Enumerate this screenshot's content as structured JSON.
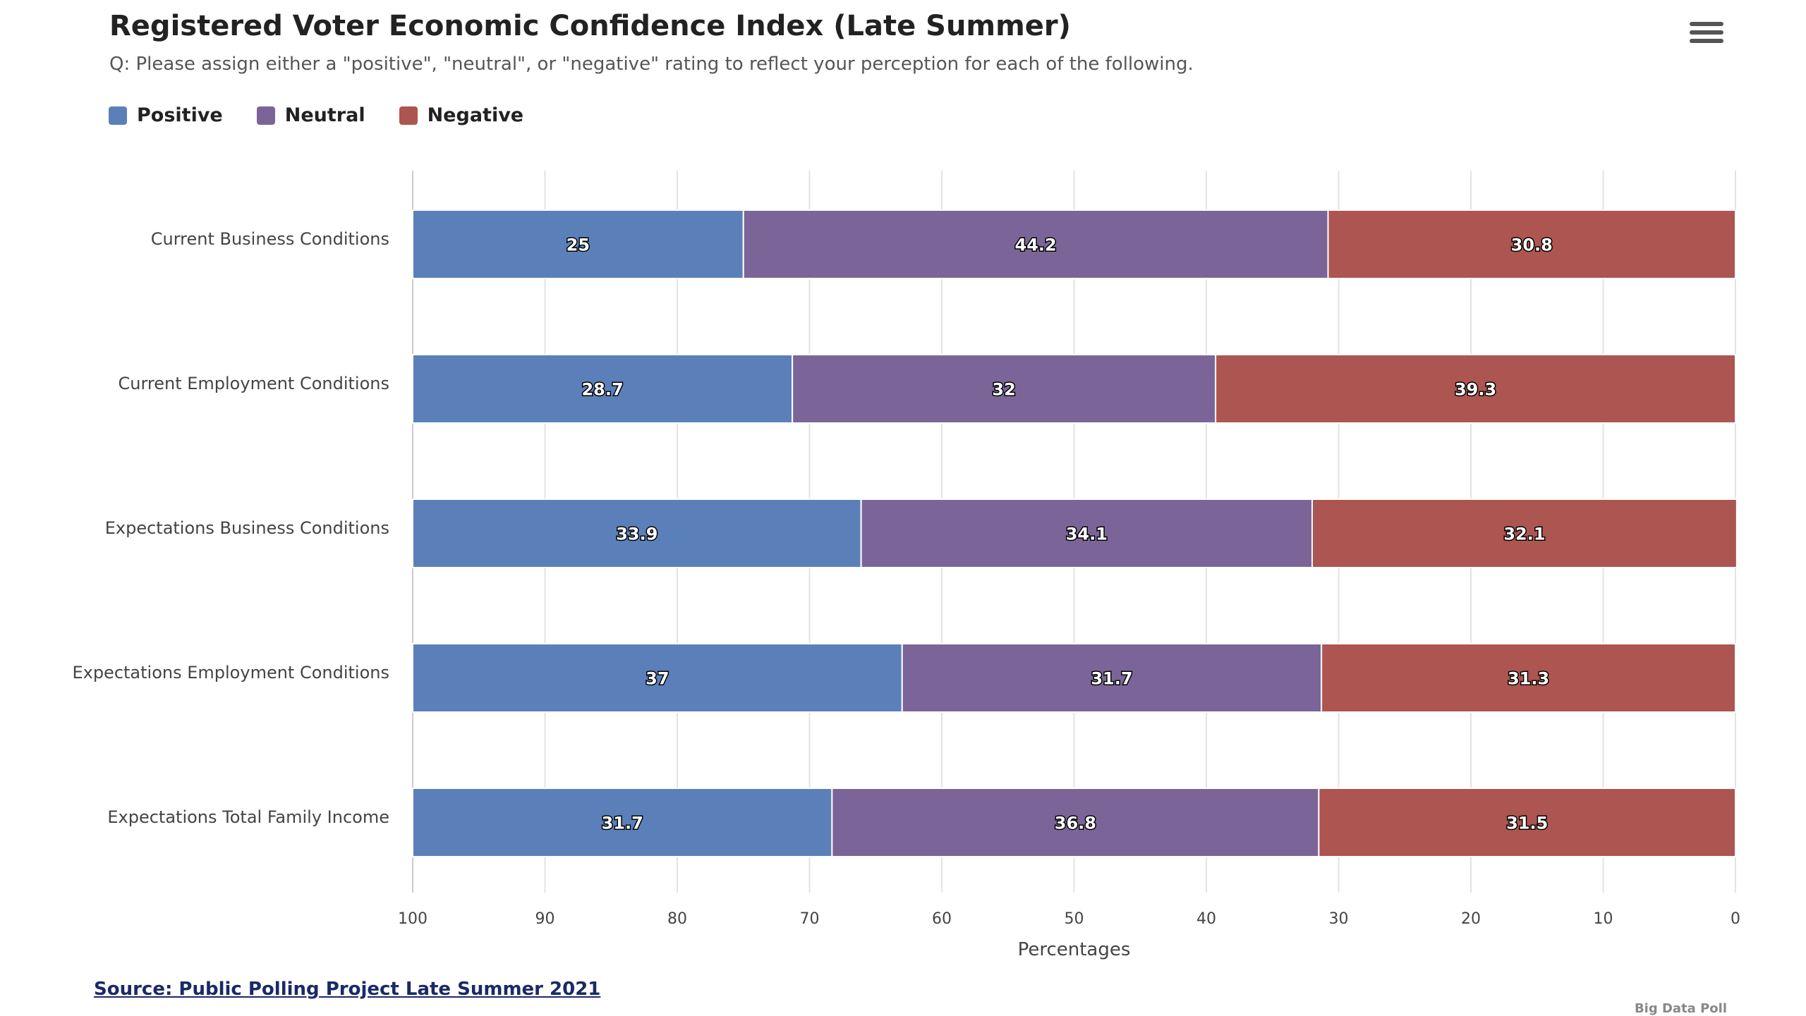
{
  "header": {
    "title": "Registered Voter Economic Confidence Index (Late Summer)",
    "subtitle": "Q: Please assign either a \"positive\", \"neutral\", or \"negative\" rating to reflect your perception for each of the following."
  },
  "menu": {
    "icon": "hamburger-menu-icon"
  },
  "legend": [
    {
      "label": "Positive",
      "color": "#5b80b9"
    },
    {
      "label": "Neutral",
      "color": "#7b6598"
    },
    {
      "label": "Negative",
      "color": "#ad5551"
    }
  ],
  "footer": {
    "source": "Source: Public Polling Project Late Summer 2021",
    "credit": "Big Data Poll"
  },
  "chart_data": {
    "type": "bar",
    "orientation": "horizontal",
    "stacked": true,
    "categories": [
      "Current Business Conditions",
      "Current Employment Conditions",
      "Expectations Business Conditions",
      "Expectations Employment Conditions",
      "Expectations Total Family Income"
    ],
    "series": [
      {
        "name": "Positive",
        "color": "#5b80b9",
        "values": [
          25,
          28.7,
          33.9,
          37,
          31.7
        ]
      },
      {
        "name": "Neutral",
        "color": "#7b6598",
        "values": [
          44.2,
          32,
          34.1,
          31.7,
          36.8
        ]
      },
      {
        "name": "Negative",
        "color": "#ad5551",
        "values": [
          30.8,
          39.3,
          32.1,
          31.3,
          31.5
        ]
      }
    ],
    "xlabel": "Percentages",
    "xlim": [
      100,
      0
    ],
    "xticks": [
      "100",
      "90",
      "80",
      "70",
      "60",
      "50",
      "40",
      "30",
      "20",
      "10",
      "0"
    ],
    "axis_reversed": true,
    "grid": true,
    "legend_position": "top-left",
    "data_labels": true
  }
}
